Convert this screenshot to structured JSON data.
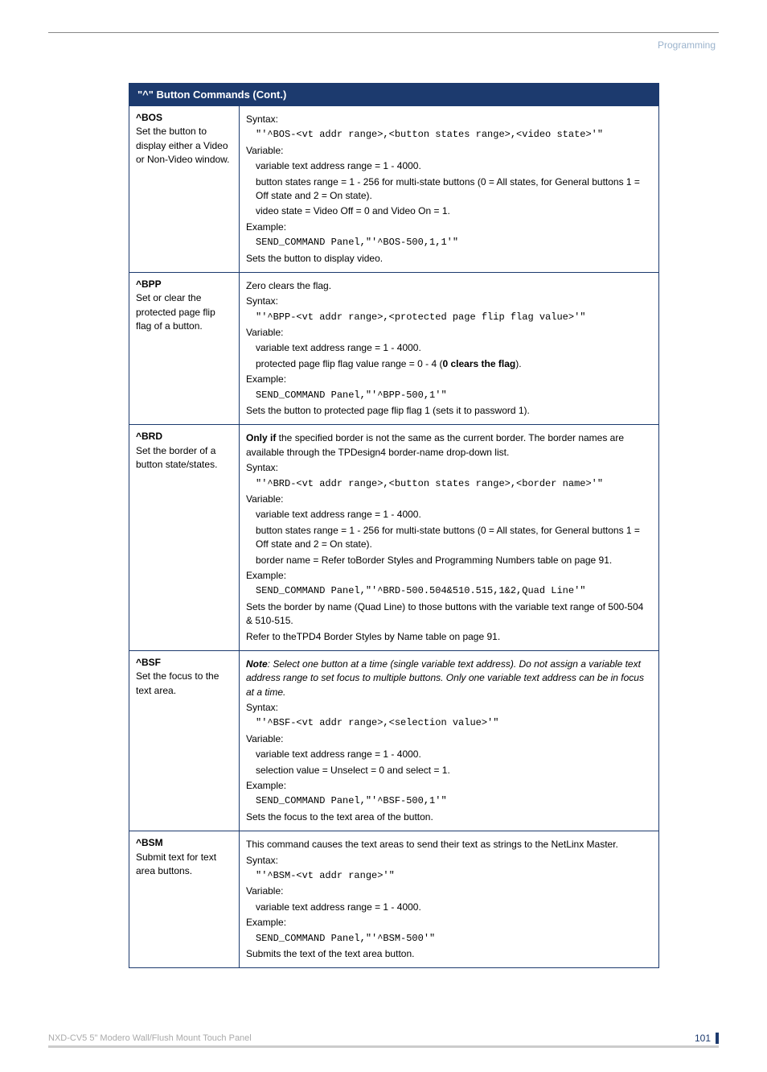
{
  "heading_right": "Programming",
  "table_title": "\"^\" Button Commands (Cont.)",
  "rows": [
    {
      "cmd": "^BOS",
      "desc": "Set the button to display either a Video or Non-Video window.",
      "body": [
        {
          "t": "p",
          "v": "Syntax:"
        },
        {
          "t": "mono1",
          "v": "\"'^BOS-<vt addr range>,<button states range>,<video state>'\""
        },
        {
          "t": "p",
          "v": "Variable:"
        },
        {
          "t": "i1",
          "v": "variable text address range = 1 - 4000."
        },
        {
          "t": "i1",
          "v": "button states range = 1 - 256 for multi-state buttons (0 = All states, for General buttons 1 = Off state and 2 = On state)."
        },
        {
          "t": "i1",
          "v": "video state = Video Off = 0 and Video On = 1."
        },
        {
          "t": "p",
          "v": "Example:"
        },
        {
          "t": "mono1",
          "v": "SEND_COMMAND Panel,\"'^BOS-500,1,1'\""
        },
        {
          "t": "p",
          "v": "Sets the button to display video."
        }
      ]
    },
    {
      "cmd": "^BPP",
      "desc": "Set or clear the protected page flip flag of a button.",
      "body": [
        {
          "t": "p",
          "v": "Zero clears the flag."
        },
        {
          "t": "p",
          "v": "Syntax:"
        },
        {
          "t": "mono1",
          "v": "\"'^BPP-<vt addr range>,<protected page flip flag value>'\""
        },
        {
          "t": "p",
          "v": "Variable:"
        },
        {
          "t": "i1",
          "v": "variable text address range = 1 - 4000."
        },
        {
          "t": "i1html",
          "v": "protected page flip flag value range = 0 - 4 (<b>0 clears the flag</b>)."
        },
        {
          "t": "p",
          "v": "Example:"
        },
        {
          "t": "mono1",
          "v": "SEND_COMMAND Panel,\"'^BPP-500,1'\""
        },
        {
          "t": "p",
          "v": "Sets the button to protected page flip flag 1 (sets it to password 1)."
        }
      ]
    },
    {
      "cmd": "^BRD",
      "desc": "Set the border of a button state/states.",
      "body": [
        {
          "t": "phtml",
          "v": "<b>Only if</b> the specified border is not the same as the current border. The border names are available through the TPDesign4 border-name drop-down list."
        },
        {
          "t": "p",
          "v": "Syntax:"
        },
        {
          "t": "mono1",
          "v": "\"'^BRD-<vt addr range>,<button states range>,<border name>'\""
        },
        {
          "t": "p",
          "v": "Variable:"
        },
        {
          "t": "i1",
          "v": "variable text address range = 1 - 4000."
        },
        {
          "t": "i1",
          "v": "button states range = 1 - 256 for multi-state buttons (0 = All states, for General buttons 1 = Off state and 2 = On state)."
        },
        {
          "t": "i1",
          "v": "border name = Refer toBorder Styles and Programming Numbers table on page 91."
        },
        {
          "t": "p",
          "v": "Example:"
        },
        {
          "t": "mono1",
          "v": "SEND_COMMAND Panel,\"'^BRD-500.504&510.515,1&2,Quad Line'\""
        },
        {
          "t": "p",
          "v": "Sets the border by name (Quad Line) to those buttons with the variable text range of 500-504 & 510-515."
        },
        {
          "t": "p",
          "v": "Refer to theTPD4 Border Styles by Name table on page 91."
        }
      ]
    },
    {
      "cmd": "^BSF",
      "desc": "Set the focus to the text area.",
      "body": [
        {
          "t": "phtml",
          "v": "<b><i>Note</i></b><i>: Select one button at a time (single variable text address). Do not assign a variable text address range to set focus to multiple buttons. Only one variable text address can be in focus at a time.</i>"
        },
        {
          "t": "p",
          "v": "Syntax:"
        },
        {
          "t": "mono1",
          "v": "\"'^BSF-<vt addr range>,<selection value>'\""
        },
        {
          "t": "p",
          "v": "Variable:"
        },
        {
          "t": "i1",
          "v": "variable text address range = 1 - 4000."
        },
        {
          "t": "i1",
          "v": "selection value = Unselect = 0 and select = 1."
        },
        {
          "t": "p",
          "v": "Example:"
        },
        {
          "t": "mono1",
          "v": "SEND_COMMAND Panel,\"'^BSF-500,1'\""
        },
        {
          "t": "p",
          "v": "Sets the focus to the text area of the button."
        }
      ]
    },
    {
      "cmd": "^BSM",
      "desc": "Submit text for text area buttons.",
      "body": [
        {
          "t": "p",
          "v": "This command causes the text areas to send their text as strings to the NetLinx Master."
        },
        {
          "t": "p",
          "v": "Syntax:"
        },
        {
          "t": "mono1",
          "v": "\"'^BSM-<vt addr range>'\""
        },
        {
          "t": "p",
          "v": "Variable:"
        },
        {
          "t": "i1",
          "v": "variable text address range = 1 - 4000."
        },
        {
          "t": "p",
          "v": "Example:"
        },
        {
          "t": "mono1",
          "v": "SEND_COMMAND Panel,\"'^BSM-500'\""
        },
        {
          "t": "p",
          "v": "Submits the text of the text area button."
        }
      ]
    }
  ],
  "footer_left": "NXD-CV5 5\" Modero Wall/Flush Mount Touch Panel",
  "footer_page": "101"
}
